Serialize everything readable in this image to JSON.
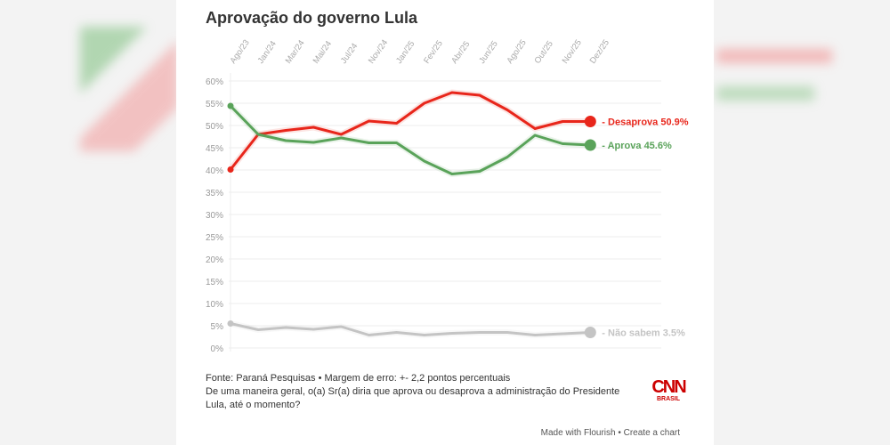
{
  "chart_data": {
    "type": "line",
    "title": "Aprovação do governo Lula",
    "categories": [
      "Ago/23",
      "Jan/24",
      "Mar/24",
      "Mai/24",
      "Jul/24",
      "Nov/24",
      "Jan/25",
      "Fev/25",
      "Abr/25",
      "Jun/25",
      "Ago/25",
      "Out/25",
      "Nov/25",
      "Dez/25"
    ],
    "yticks": [
      "0%",
      "5%",
      "10%",
      "15%",
      "20%",
      "25%",
      "30%",
      "35%",
      "40%",
      "45%",
      "50%",
      "55%",
      "60%"
    ],
    "ylim": [
      0,
      60
    ],
    "grid": true,
    "series": [
      {
        "name": "Desaprova",
        "label": "- Desaprova 50.9%",
        "color": "#e8261b",
        "values": [
          40.1,
          48,
          48.9,
          49.6,
          48,
          51,
          50.5,
          55,
          57.4,
          56.8,
          53.5,
          49.3,
          50.9,
          50.9
        ]
      },
      {
        "name": "Aprova",
        "label": "- Aprova 45.6%",
        "color": "#5aa35a",
        "values": [
          54.4,
          48,
          46.6,
          46.2,
          47.2,
          46.1,
          46.1,
          42,
          39.1,
          39.7,
          42.9,
          47.8,
          45.9,
          45.6
        ]
      },
      {
        "name": "Não sabem",
        "label": "- Não sabem 3.5%",
        "color": "#c4c4c4",
        "values": [
          5.5,
          4.1,
          4.6,
          4.2,
          4.8,
          2.9,
          3.5,
          2.9,
          3.3,
          3.5,
          3.5,
          2.9,
          3.2,
          3.5
        ]
      }
    ]
  },
  "footer": {
    "source": "Fonte: Paraná Pesquisas • Margem de erro: +- 2,2 pontos percentuais",
    "question": "De uma maneira geral, o(a) Sr(a) diria que aprova ou desaprova a administração do Presidente Lula, até o momento?",
    "made_with": "Made with Flourish • Create a chart"
  },
  "logo": {
    "text": "CNN",
    "sub": "BRASIL"
  }
}
